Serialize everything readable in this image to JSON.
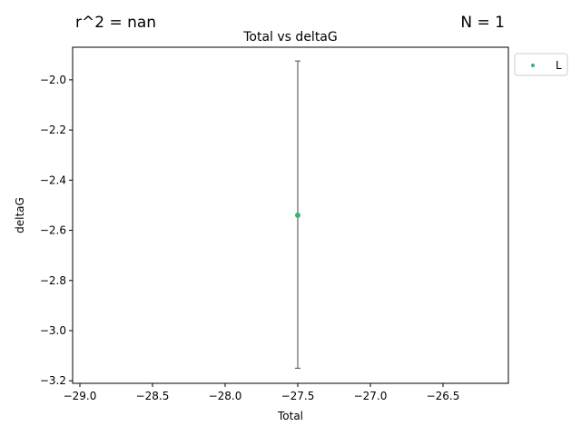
{
  "annotations": {
    "r2_text": "r^2 = nan",
    "n_text": "N = 1"
  },
  "chart_data": {
    "type": "scatter",
    "title": "Total vs deltaG",
    "xlabel": "Total",
    "ylabel": "deltaG",
    "xlim": [
      -29.05,
      -26.05
    ],
    "ylim": [
      -3.21,
      -1.87
    ],
    "x_ticks": [
      -29.0,
      -28.5,
      -28.0,
      -27.5,
      -27.0,
      -26.5
    ],
    "x_tick_labels": [
      "−29.0",
      "−28.5",
      "−28.0",
      "−27.5",
      "−27.0",
      "−26.5"
    ],
    "y_ticks": [
      -2.0,
      -2.2,
      -2.4,
      -2.6,
      -2.8,
      -3.0,
      -3.2
    ],
    "y_tick_labels": [
      "−2.0",
      "−2.2",
      "−2.4",
      "−2.6",
      "−2.8",
      "−3.0",
      "−3.2"
    ],
    "grid": false,
    "legend_position": "outside-top-right",
    "series": [
      {
        "name": "L",
        "color": "#3cb371",
        "points": [
          {
            "x": -27.5,
            "y": -2.54,
            "y_err_low": -3.15,
            "y_err_high": -1.925
          }
        ]
      }
    ],
    "errorbar_color": "#666666"
  }
}
